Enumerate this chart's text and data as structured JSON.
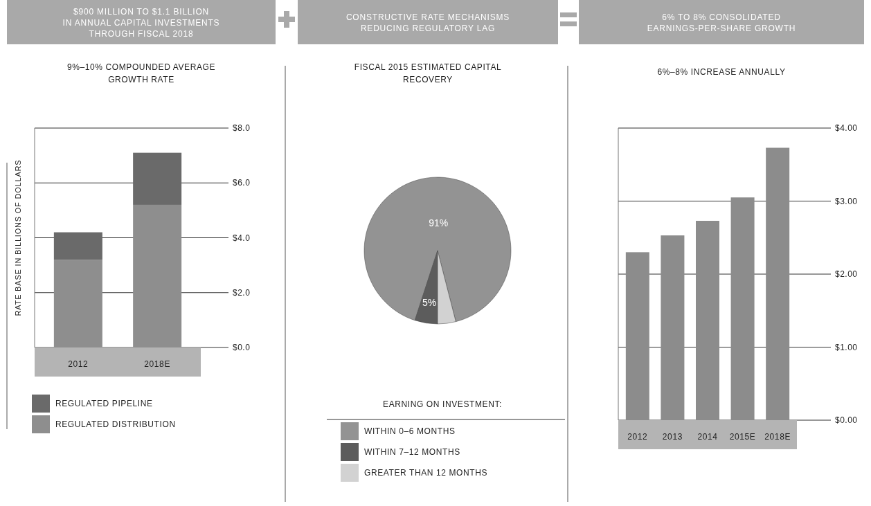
{
  "chart_data": [
    {
      "type": "bar",
      "title": "$900 MILLION TO $1.1 BILLION IN ANNUAL CAPITAL INVESTMENTS THROUGH FISCAL 2018",
      "subtitle": "9%–10% COMPOUNDED AVERAGE GROWTH RATE",
      "ylabel": "RATE BASE IN BILLIONS OF DOLLARS",
      "categories": [
        "2012",
        "2018E"
      ],
      "stacked": true,
      "series": [
        {
          "name": "REGULATED DISTRIBUTION",
          "color": "#8e8e8e",
          "values": [
            3.2,
            5.2
          ]
        },
        {
          "name": "REGULATED PIPELINE",
          "color": "#6a6a6a",
          "values": [
            1.0,
            1.9
          ]
        }
      ],
      "ylim": [
        0,
        8
      ],
      "yticks": [
        {
          "value": 0,
          "label": "$0.0"
        },
        {
          "value": 2,
          "label": "$2.0"
        },
        {
          "value": 4,
          "label": "$4.0"
        },
        {
          "value": 6,
          "label": "$6.0"
        },
        {
          "value": 8,
          "label": "$8.0"
        }
      ],
      "grid": "y",
      "legend": "bottom"
    },
    {
      "type": "pie",
      "title": "CONSTRUCTIVE RATE MECHANISMS REDUCING REGULATORY LAG",
      "subtitle": "FISCAL 2015 ESTIMATED CAPITAL RECOVERY",
      "legend_title": "EARNING ON INVESTMENT:",
      "categories": [
        "WITHIN 0–6 MONTHS",
        "WITHIN 7–12 MONTHS",
        "GREATER THAN 12 MONTHS"
      ],
      "values": [
        91,
        5,
        4
      ],
      "colors": [
        "#939393",
        "#5c5c5c",
        "#d2d2d2"
      ],
      "value_labels": [
        "91%",
        "5%",
        null
      ],
      "legend": "bottom"
    },
    {
      "type": "bar",
      "title": "6% TO 8% CONSOLIDATED EARNINGS-PER-SHARE GROWTH",
      "subtitle": "6%–8% INCREASE ANNUALLY",
      "categories": [
        "2012",
        "2013",
        "2014",
        "2015E",
        "2018E"
      ],
      "values": [
        2.3,
        2.53,
        2.73,
        3.05,
        3.73
      ],
      "color": "#8c8c8c",
      "ylim": [
        0,
        4
      ],
      "yticks": [
        {
          "value": 0,
          "label": "$0.00"
        },
        {
          "value": 1,
          "label": "$1.00"
        },
        {
          "value": 2,
          "label": "$2.00"
        },
        {
          "value": 3,
          "label": "$3.00"
        },
        {
          "value": 4,
          "label": "$4.00"
        }
      ],
      "grid": "y"
    }
  ]
}
